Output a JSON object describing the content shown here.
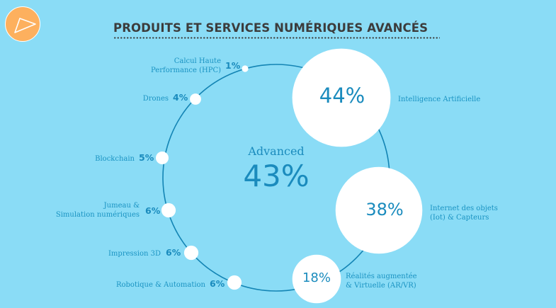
{
  "header": {
    "title": "PRODUITS ET SERVICES NUMÉRIQUES AVANCÉS",
    "logo_icon": "play-icon"
  },
  "colors": {
    "background": "#8adcf6",
    "accent": "#1a8bbd",
    "logo": "#fdb05e",
    "title": "#3c3c3c",
    "node": "#ffffff"
  },
  "center": {
    "label": "Advanced",
    "value": "43%"
  },
  "chart_data": {
    "type": "bubble-ring",
    "title": "PRODUITS ET SERVICES NUMÉRIQUES AVANCÉS",
    "center_label": "Advanced",
    "center_value": 43,
    "items": [
      {
        "name": "Intelligence Artificielle",
        "value": 44,
        "display": "44%"
      },
      {
        "name": "Internet des objets (Iot) & Capteurs",
        "value": 38,
        "display": "38%"
      },
      {
        "name": "Réalités augmentée & Virtuelle (AR/VR)",
        "value": 18,
        "display": "18%"
      },
      {
        "name": "Robotique & Automation",
        "value": 6,
        "display": "6%"
      },
      {
        "name": "Impression 3D",
        "value": 6,
        "display": "6%"
      },
      {
        "name": "Jumeau & Simulation numériques",
        "value": 6,
        "display": "6%"
      },
      {
        "name": "Blockchain",
        "value": 5,
        "display": "5%"
      },
      {
        "name": "Drones",
        "value": 4,
        "display": "4%"
      },
      {
        "name": "Calcul Haute Performance (HPC)",
        "value": 1,
        "display": "1%"
      }
    ]
  },
  "labels": {
    "ai": [
      "Intelligence Artificielle"
    ],
    "iot": [
      "Internet des objets",
      "(Iot) & Capteurs"
    ],
    "arvr": [
      "Réalités augmentée",
      "& Virtuelle (AR/VR)"
    ],
    "robot": [
      "Robotique & Automation"
    ],
    "print3d": [
      "Impression 3D"
    ],
    "twin": [
      "Jumeau &",
      "Simulation numériques"
    ],
    "blockchain": [
      "Blockchain"
    ],
    "drones": [
      "Drones"
    ],
    "hpc": [
      "Calcul Haute",
      "Performance (HPC)"
    ]
  }
}
